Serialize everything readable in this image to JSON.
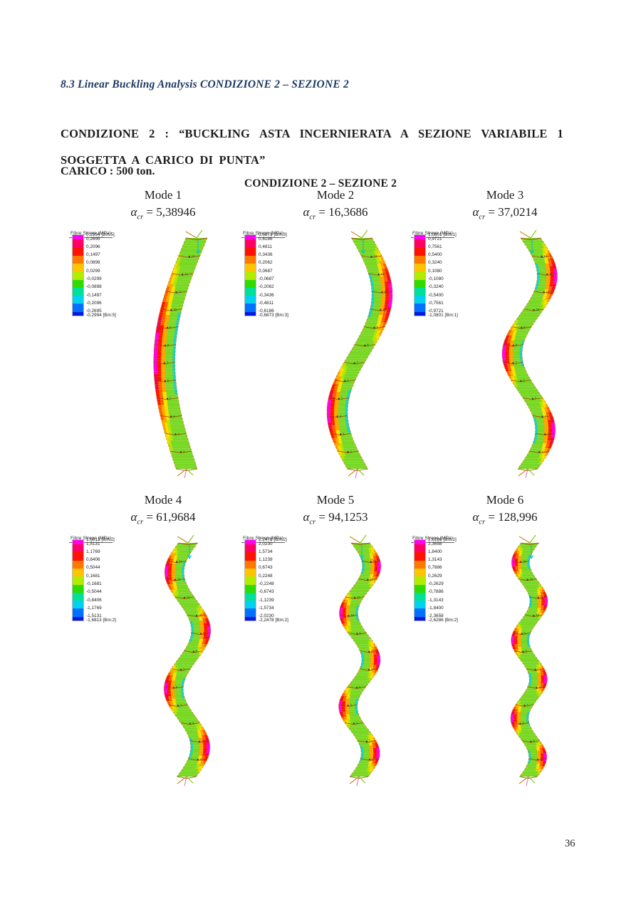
{
  "page": {
    "section_heading": "8.3 Linear Buckling Analysis CONDIZIONE 2 – SEZIONE 2",
    "condition_paragraph": "CONDIZIONE 2 : “BUCKLING ASTA INCERNIERATA A SEZIONE VARIABILE 1 SOGGETTA A CARICO DI PUNTA”",
    "load_line": "CARICO : 500 ton.",
    "page_number": "36"
  },
  "figure": {
    "title": "CONDIZIONE 2 – SEZIONE 2",
    "legend_title": "Fibre Stress (MPa)",
    "alpha_symbol": "α",
    "alpha_subscript": "cr",
    "equals": "=",
    "colors": {
      "heading_navy": "#1f3a63",
      "text_black": "#1c1c1c",
      "beam_body_green": "#79d824",
      "legend_bands": [
        "#ff00f0",
        "#ff0064",
        "#ff1200",
        "#ff7800",
        "#ffc400",
        "#b4ec00",
        "#2edc00",
        "#00e098",
        "#00d2f0",
        "#0070ff",
        "#0018e0"
      ]
    },
    "modes": [
      {
        "label": "Mode 1",
        "alpha_value": "5,38946",
        "half_waves": 1,
        "legend_labels": [
          "0,2994 [Bm:5]",
          "0,2695",
          "0,2096",
          "0,1497",
          "0,0898",
          "0,0299",
          "-0,0299",
          "-0,0898",
          "-0,1497",
          "-0,2096",
          "-0,2695",
          "-0,2994 [Bm:5]"
        ]
      },
      {
        "label": "Mode 2",
        "alpha_value": "16,3686",
        "half_waves": 2,
        "legend_labels": [
          "0,6873 [Bm:3]",
          "0,6186",
          "0,4811",
          "0,3436",
          "0,2062",
          "0,0687",
          "-0,0687",
          "-0,2062",
          "-0,3436",
          "-0,4811",
          "-0,6186",
          "-0,6873 [Bm:3]"
        ]
      },
      {
        "label": "Mode 3",
        "alpha_value": "37,0214",
        "half_waves": 3,
        "legend_labels": [
          "1,0801 [Bm:1]",
          "0,9721",
          "0,7561",
          "0,5400",
          "0,3240",
          "0,1080",
          "-0,1080",
          "-0,3240",
          "-0,5400",
          "-0,7561",
          "-0,9721",
          "-1,0801 [Bm:1]"
        ]
      },
      {
        "label": "Mode 4",
        "alpha_value": "61,9684",
        "half_waves": 4,
        "legend_labels": [
          "1,6813 [Bm:2]",
          "1,5131",
          "1,1769",
          "0,8406",
          "0,5044",
          "0,1681",
          "-0,1681",
          "-0,5044",
          "-0,8406",
          "-1,1769",
          "-1,5131",
          "-1,6813 [Bm:2]"
        ]
      },
      {
        "label": "Mode 5",
        "alpha_value": "94,1253",
        "half_waves": 5,
        "legend_labels": [
          "2,2478 [Bm:2]",
          "2,0230",
          "1,5734",
          "1,1239",
          "0,6743",
          "0,2248",
          "-0,2248",
          "-0,6743",
          "-1,1239",
          "-1,5734",
          "-2,0230",
          "-2,2478 [Bm:2]"
        ]
      },
      {
        "label": "Mode 6",
        "alpha_value": "128,996",
        "half_waves": 6,
        "legend_labels": [
          "2,6286 [Bm:2]",
          "2,3658",
          "1,8400",
          "1,3143",
          "0,7886",
          "0,2629",
          "-0,2629",
          "-0,7886",
          "-1,3143",
          "-1,8400",
          "-2,3658",
          "-2,6286 [Bm:2]"
        ]
      }
    ]
  }
}
